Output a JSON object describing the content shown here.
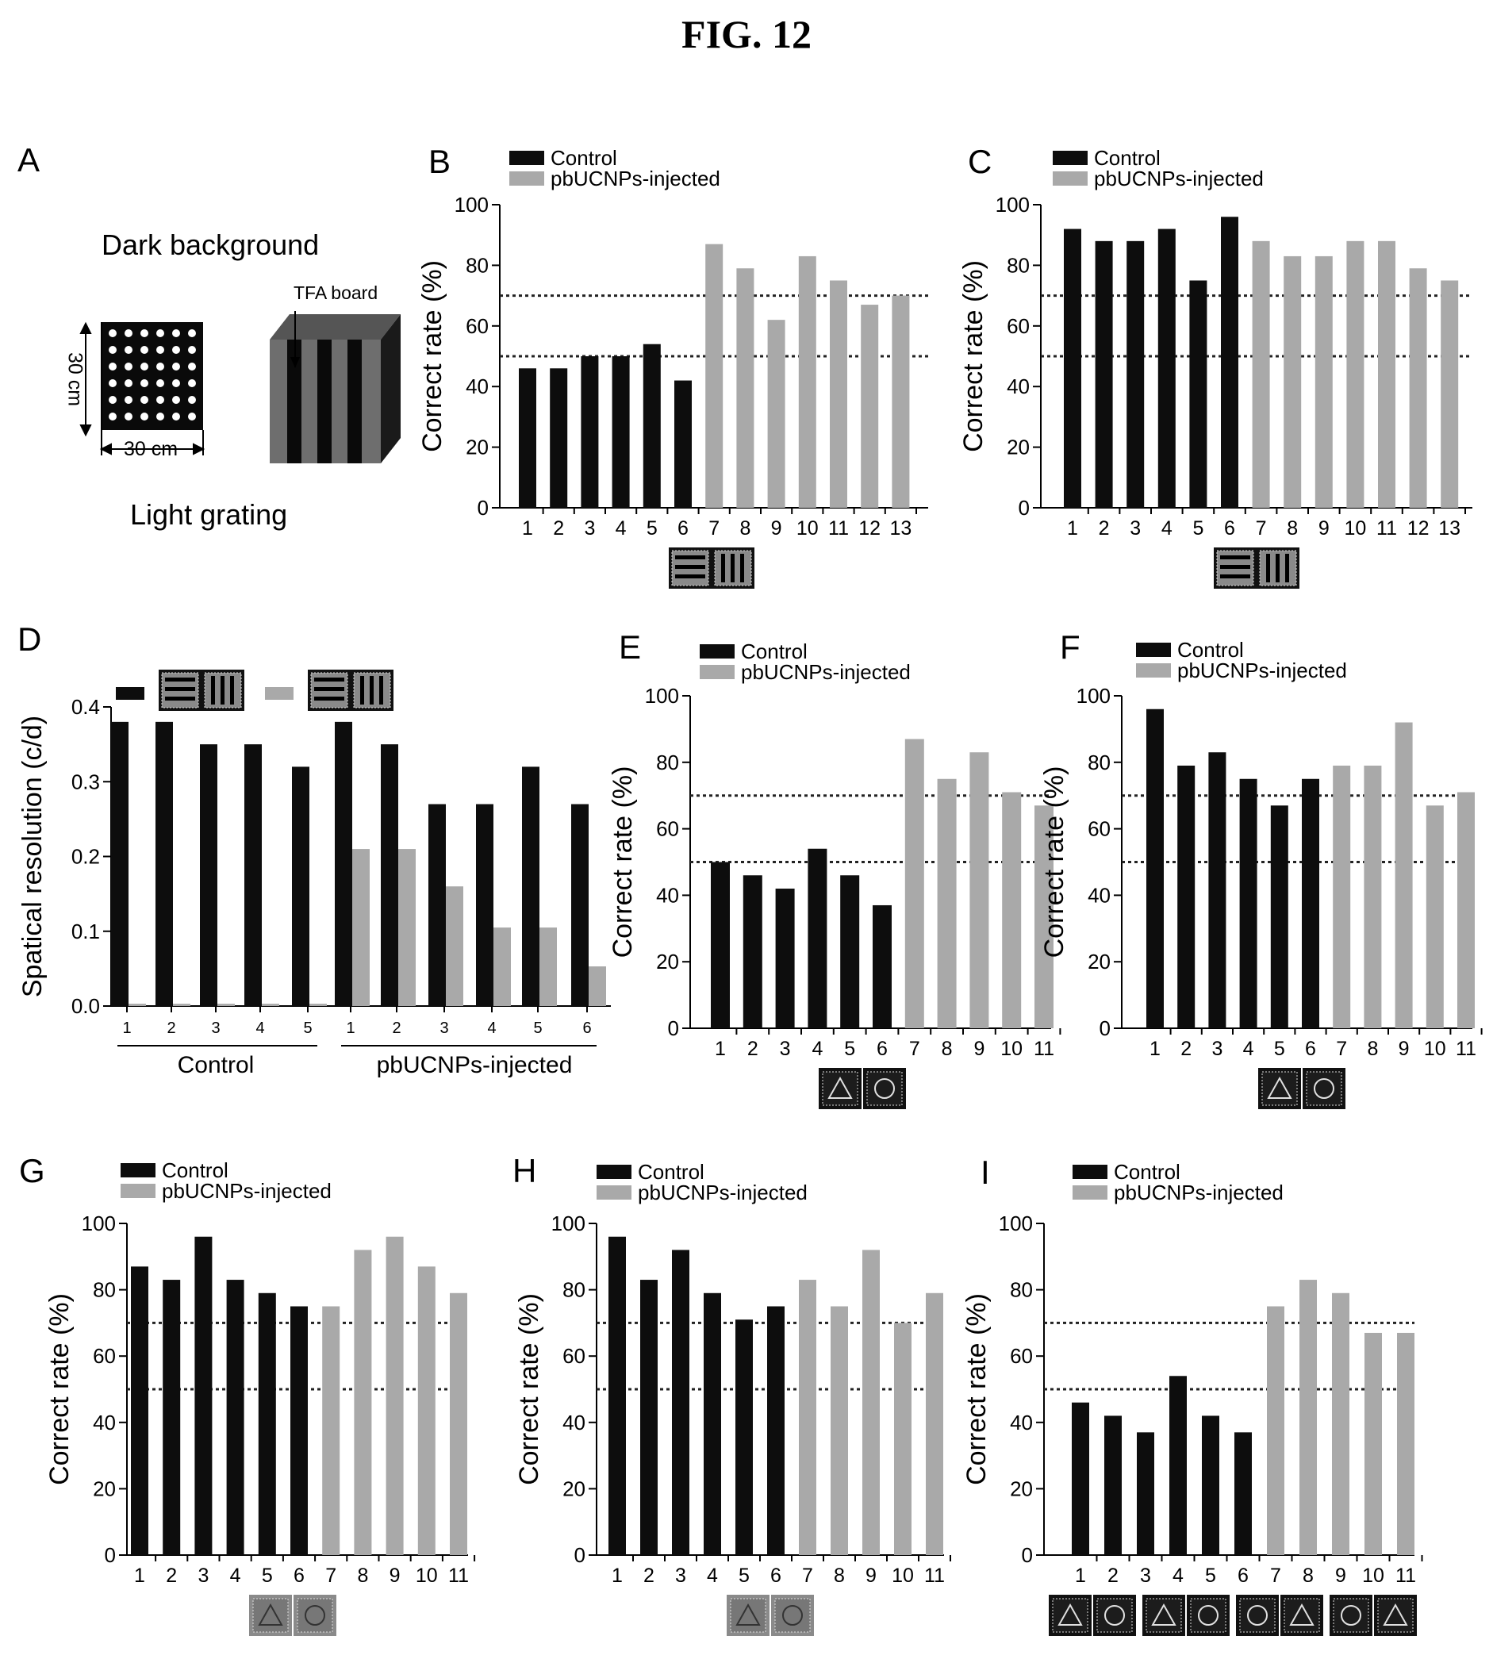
{
  "figure_title": "FIG. 12",
  "colors": {
    "control": "#0d0d0d",
    "injected": "#a9a9a9",
    "reference_line": "#222222"
  },
  "legend": {
    "control": "Control",
    "injected": "pbUCNPs-injected"
  },
  "panel_a": {
    "letter": "A",
    "dark_background": "Dark background",
    "light_grating": "Light grating",
    "tfa_board": "TFA board",
    "width_label": "30 cm",
    "height_label": "30 cm"
  },
  "chart_data": [
    {
      "id": "B",
      "type": "bar",
      "ylabel": "Correct rate (%)",
      "ylim": [
        0,
        100
      ],
      "categories": [
        "1",
        "2",
        "3",
        "4",
        "5",
        "6",
        "7",
        "8",
        "9",
        "10",
        "11",
        "12",
        "13"
      ],
      "values": [
        46,
        46,
        50,
        50,
        54,
        42,
        87,
        79,
        62,
        83,
        75,
        67,
        70
      ],
      "groups": [
        "control",
        "control",
        "control",
        "control",
        "control",
        "control",
        "injected",
        "injected",
        "injected",
        "injected",
        "injected",
        "injected",
        "injected"
      ],
      "reference_lines": [
        70,
        50
      ],
      "legend": "top-left",
      "stimulus_icon": "horizontal-vs-vertical-grating"
    },
    {
      "id": "C",
      "type": "bar",
      "ylabel": "Correct rate (%)",
      "ylim": [
        0,
        100
      ],
      "categories": [
        "1",
        "2",
        "3",
        "4",
        "5",
        "6",
        "7",
        "8",
        "9",
        "10",
        "11",
        "12",
        "13"
      ],
      "values": [
        92,
        88,
        88,
        92,
        75,
        96,
        88,
        83,
        83,
        88,
        88,
        79,
        75
      ],
      "groups": [
        "control",
        "control",
        "control",
        "control",
        "control",
        "control",
        "injected",
        "injected",
        "injected",
        "injected",
        "injected",
        "injected",
        "injected"
      ],
      "reference_lines": [
        70,
        50
      ],
      "legend": "top-left",
      "stimulus_icon": "horizontal-vs-vertical-grating"
    },
    {
      "id": "D",
      "type": "bar",
      "ylabel": "Spatical resolution (c/d)",
      "ylim": [
        0,
        0.4
      ],
      "group_labels": [
        "Control",
        "pbUCNPs-injected"
      ],
      "categories": [
        "1",
        "2",
        "3",
        "4",
        "5",
        "1",
        "2",
        "3",
        "4",
        "5",
        "6"
      ],
      "series": [
        {
          "values": [
            0.38,
            0.38,
            0.35,
            0.35,
            0.32,
            0.38,
            0.35,
            0.27,
            0.27,
            0.32,
            0.27
          ]
        },
        {
          "values": [
            0.003,
            0.003,
            0.003,
            0.003,
            0.003,
            0.21,
            0.21,
            0.16,
            0.105,
            0.105,
            0.053
          ]
        }
      ],
      "legend": "top"
    },
    {
      "id": "E",
      "type": "bar",
      "ylabel": "Correct rate (%)",
      "ylim": [
        0,
        100
      ],
      "categories": [
        "1",
        "2",
        "3",
        "4",
        "5",
        "6",
        "7",
        "8",
        "9",
        "10",
        "11"
      ],
      "values": [
        50,
        46,
        42,
        54,
        46,
        37,
        87,
        75,
        83,
        71,
        67
      ],
      "groups": [
        "control",
        "control",
        "control",
        "control",
        "control",
        "control",
        "injected",
        "injected",
        "injected",
        "injected",
        "injected"
      ],
      "reference_lines": [
        70,
        50
      ],
      "legend": "top-left",
      "stimulus_icon": "triangle-vs-circle"
    },
    {
      "id": "F",
      "type": "bar",
      "ylabel": "Correct rate (%)",
      "ylim": [
        0,
        100
      ],
      "categories": [
        "1",
        "2",
        "3",
        "4",
        "5",
        "6",
        "7",
        "8",
        "9",
        "10",
        "11"
      ],
      "values": [
        96,
        79,
        83,
        75,
        67,
        75,
        79,
        79,
        92,
        67,
        71
      ],
      "groups": [
        "control",
        "control",
        "control",
        "control",
        "control",
        "control",
        "injected",
        "injected",
        "injected",
        "injected",
        "injected"
      ],
      "reference_lines": [
        70,
        50
      ],
      "legend": "top-left",
      "stimulus_icon": "triangle-vs-circle"
    },
    {
      "id": "G",
      "type": "bar",
      "ylabel": "Correct rate (%)",
      "ylim": [
        0,
        100
      ],
      "categories": [
        "1",
        "2",
        "3",
        "4",
        "5",
        "6",
        "7",
        "8",
        "9",
        "10",
        "11"
      ],
      "values": [
        87,
        83,
        96,
        83,
        79,
        75,
        75,
        92,
        96,
        87,
        79
      ],
      "groups": [
        "control",
        "control",
        "control",
        "control",
        "control",
        "control",
        "injected",
        "injected",
        "injected",
        "injected",
        "injected"
      ],
      "reference_lines": [
        70,
        50
      ],
      "legend": "top-left",
      "stimulus_icon": "triangle-vs-circle-light"
    },
    {
      "id": "H",
      "type": "bar",
      "ylabel": "Correct rate (%)",
      "ylim": [
        0,
        100
      ],
      "categories": [
        "1",
        "2",
        "3",
        "4",
        "5",
        "6",
        "7",
        "8",
        "9",
        "10",
        "11"
      ],
      "values": [
        96,
        83,
        92,
        79,
        71,
        75,
        83,
        75,
        92,
        70,
        79
      ],
      "groups": [
        "control",
        "control",
        "control",
        "control",
        "control",
        "control",
        "injected",
        "injected",
        "injected",
        "injected",
        "injected"
      ],
      "reference_lines": [
        70,
        50
      ],
      "legend": "top-left",
      "stimulus_icon": "triangle-vs-circle-light"
    },
    {
      "id": "I",
      "type": "bar",
      "ylabel": "Correct rate (%)",
      "ylim": [
        0,
        100
      ],
      "categories": [
        "1",
        "2",
        "3",
        "4",
        "5",
        "6",
        "7",
        "8",
        "9",
        "10",
        "11"
      ],
      "values": [
        46,
        42,
        37,
        54,
        42,
        37,
        75,
        83,
        79,
        67,
        67
      ],
      "groups": [
        "control",
        "control",
        "control",
        "control",
        "control",
        "control",
        "injected",
        "injected",
        "injected",
        "injected",
        "injected"
      ],
      "reference_lines": [
        70,
        50
      ],
      "legend": "top-left",
      "stimulus_icon": "four-shape-pairs"
    }
  ]
}
